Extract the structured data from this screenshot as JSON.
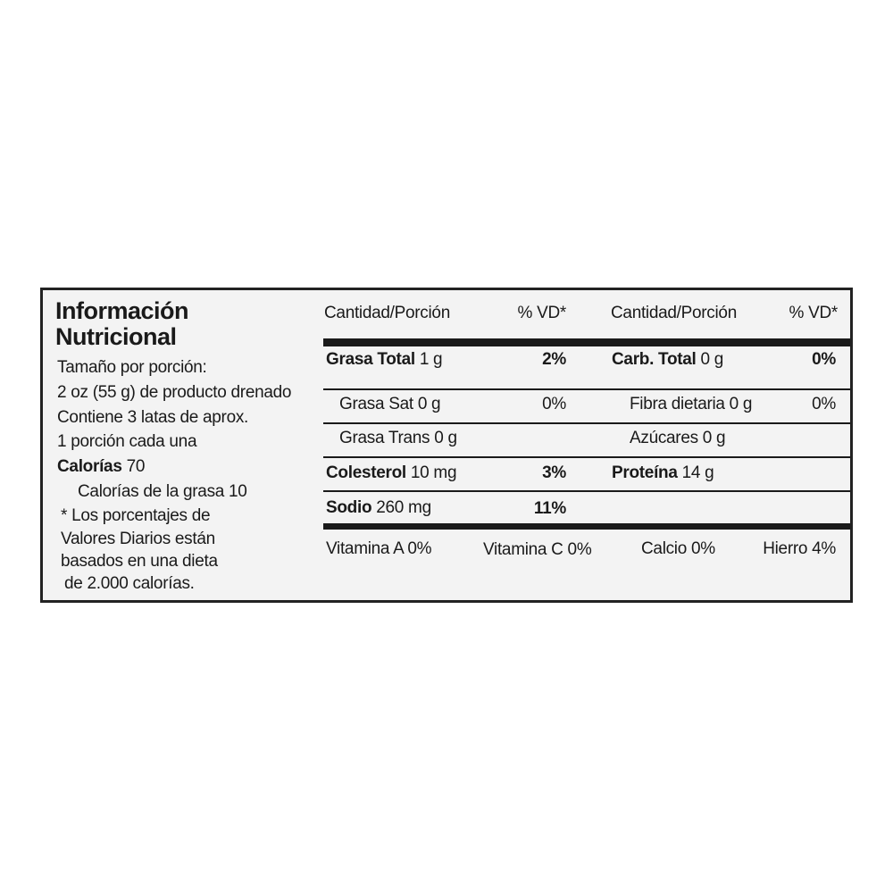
{
  "header": {
    "title_line1": "Información",
    "title_line2": "Nutricional"
  },
  "serving": {
    "lines": [
      "Tamaño por porción:",
      "2 oz (55 g) de producto drenado",
      "Contiene 3 latas de aprox.",
      "1 porción cada una"
    ]
  },
  "calories": {
    "label": "Calorías",
    "value": "70",
    "fat_calories": "Calorías de la grasa 10"
  },
  "footnote": {
    "lines": [
      "* Los porcentajes de",
      "Valores Diarios están",
      "basados en una dieta",
      "de 2.000 calorías."
    ]
  },
  "table": {
    "columns": [
      "Cantidad/Porción",
      "% VD*",
      "Cantidad/Porción",
      "% VD*"
    ],
    "rows": [
      {
        "left": {
          "label": "Grasa Total",
          "amount": "1 g",
          "dv": "2%"
        },
        "right": {
          "label": "Carb. Total",
          "amount": "0 g",
          "dv": "0%"
        }
      },
      {
        "left": {
          "label": "Grasa Sat 0 g",
          "dv": "0%"
        },
        "right": {
          "label": "Fibra dietaria 0 g",
          "dv": "0%"
        }
      },
      {
        "left": {
          "label": "Grasa Trans 0 g"
        },
        "right": {
          "label": "Azúcares 0 g"
        }
      },
      {
        "left": {
          "label": "Colesterol",
          "amount": "10 mg",
          "dv": "3%"
        },
        "right": {
          "label": "Proteína",
          "amount": "14 g"
        }
      },
      {
        "left": {
          "label": "Sodio",
          "amount": "260 mg",
          "dv": "11%"
        }
      }
    ]
  },
  "vitamins": [
    "Vitamina A 0%",
    "Vitamina C 0%",
    "Calcio 0%",
    "Hierro 4%"
  ]
}
